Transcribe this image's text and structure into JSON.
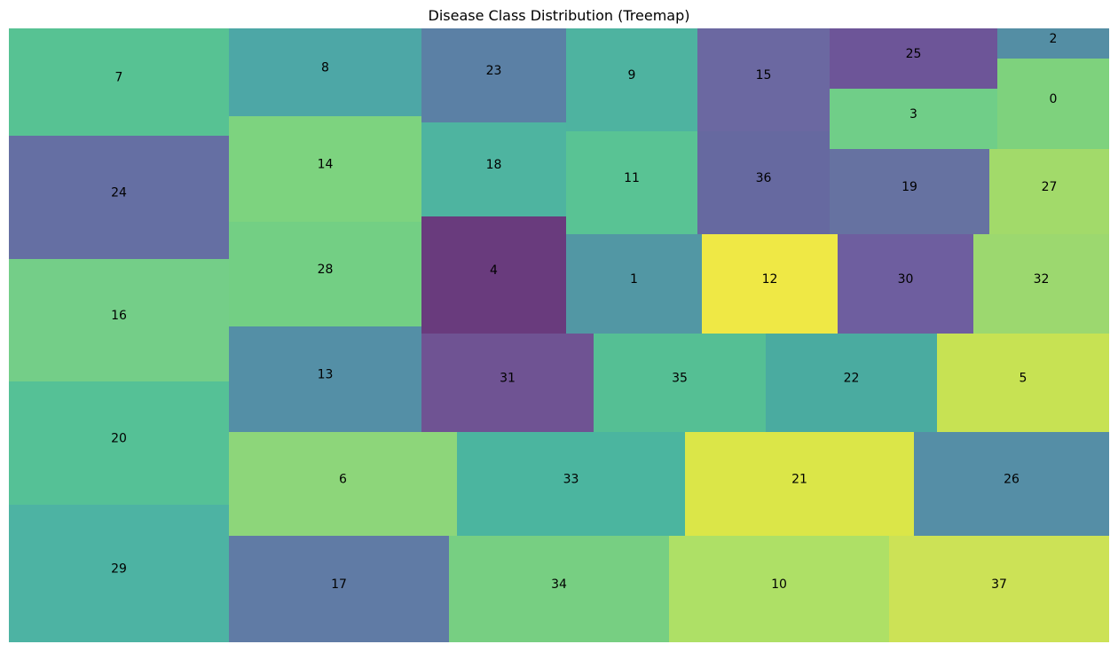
{
  "chart_data": {
    "type": "treemap",
    "title": "Disease Class Distribution (Treemap)",
    "cells": [
      {
        "label": "7",
        "color": "#57c293"
      },
      {
        "label": "24",
        "color": "#656fa3"
      },
      {
        "label": "16",
        "color": "#74ce88"
      },
      {
        "label": "20",
        "color": "#55c196"
      },
      {
        "label": "29",
        "color": "#4db3a3"
      },
      {
        "label": "8",
        "color": "#4da7a6"
      },
      {
        "label": "14",
        "color": "#7dd37f"
      },
      {
        "label": "28",
        "color": "#73cf84"
      },
      {
        "label": "13",
        "color": "#548fa6"
      },
      {
        "label": "23",
        "color": "#5b80a5"
      },
      {
        "label": "18",
        "color": "#4eb4a0"
      },
      {
        "label": "4",
        "color": "#693b7d"
      },
      {
        "label": "9",
        "color": "#4eb3a0"
      },
      {
        "label": "11",
        "color": "#59c394"
      },
      {
        "label": "1",
        "color": "#5297a4"
      },
      {
        "label": "15",
        "color": "#6b68a1"
      },
      {
        "label": "36",
        "color": "#6669a0"
      },
      {
        "label": "12",
        "color": "#efe845"
      },
      {
        "label": "25",
        "color": "#6d5598"
      },
      {
        "label": "3",
        "color": "#70ce88"
      },
      {
        "label": "2",
        "color": "#548ea4"
      },
      {
        "label": "0",
        "color": "#7ed27d"
      },
      {
        "label": "19",
        "color": "#6672a1"
      },
      {
        "label": "30",
        "color": "#6e5e9f"
      },
      {
        "label": "27",
        "color": "#a2da6a"
      },
      {
        "label": "32",
        "color": "#9cd86f"
      },
      {
        "label": "31",
        "color": "#6f5393"
      },
      {
        "label": "35",
        "color": "#55bf94"
      },
      {
        "label": "22",
        "color": "#4aaba0"
      },
      {
        "label": "5",
        "color": "#c7e253"
      },
      {
        "label": "6",
        "color": "#8dd67a"
      },
      {
        "label": "33",
        "color": "#4bb59f"
      },
      {
        "label": "21",
        "color": "#dbe648"
      },
      {
        "label": "26",
        "color": "#558ea6"
      },
      {
        "label": "17",
        "color": "#607ba5"
      },
      {
        "label": "34",
        "color": "#77cf82"
      },
      {
        "label": "10",
        "color": "#aee066"
      },
      {
        "label": "37",
        "color": "#cce256"
      }
    ]
  }
}
